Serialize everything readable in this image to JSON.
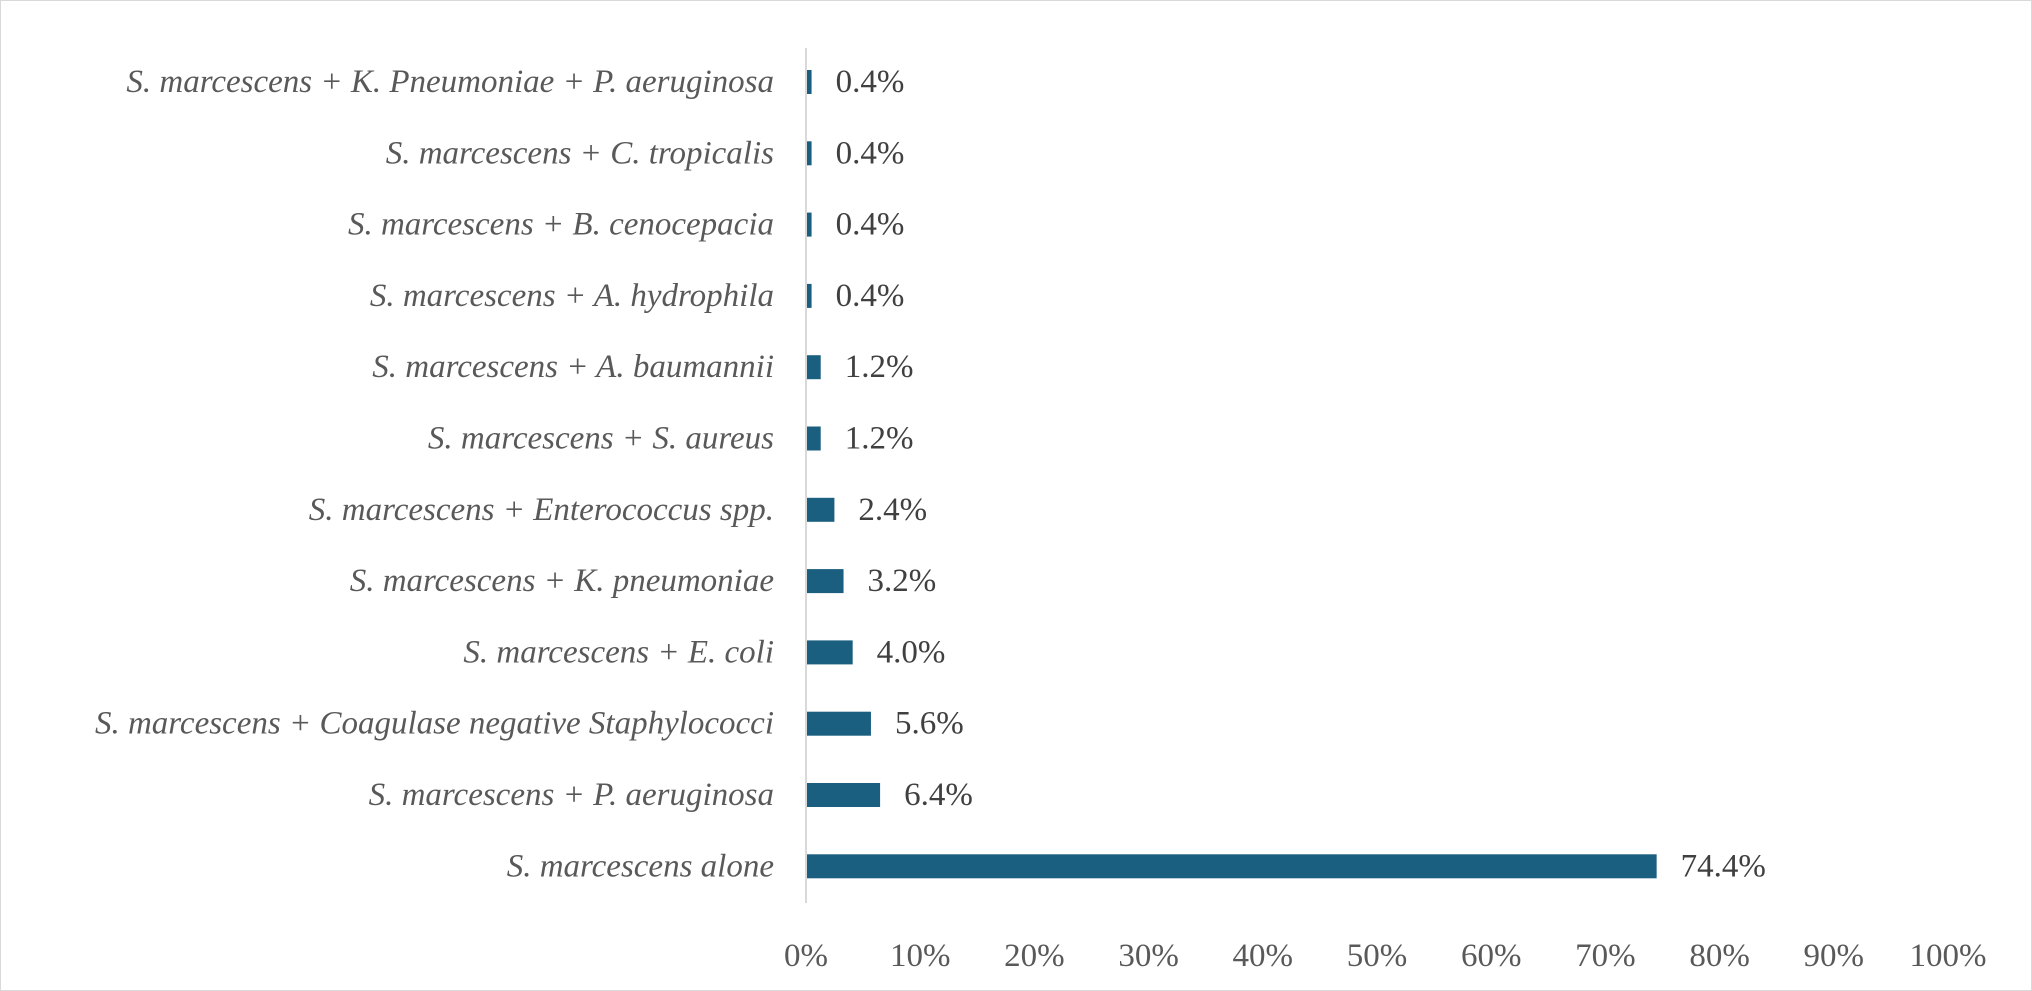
{
  "chart_data": {
    "type": "bar",
    "orientation": "horizontal",
    "title": "",
    "xlabel": "",
    "ylabel": "",
    "xlim": [
      0,
      100
    ],
    "grid": false,
    "legend": "none",
    "bar_color": "#1a5f7f",
    "categories": [
      "S. marcescens + K. Pneumoniae + P. aeruginosa",
      "S. marcescens + C. tropicalis",
      "S. marcescens + B. cenocepacia",
      "S. marcescens + A. hydrophila",
      "S. marcescens + A. baumannii",
      "S. marcescens + S. aureus",
      "S. marcescens + Enterococcus spp.",
      "S. marcescens + K. pneumoniae",
      "S. marcescens + E. coli",
      "S. marcescens + Coagulase negative Staphylococci",
      "S. marcescens + P. aeruginosa",
      "S. marcescens alone"
    ],
    "values": [
      0.4,
      0.4,
      0.4,
      0.4,
      1.2,
      1.2,
      2.4,
      3.2,
      4.0,
      5.6,
      6.4,
      74.4
    ],
    "data_labels": [
      "0.4%",
      "0.4%",
      "0.4%",
      "0.4%",
      "1.2%",
      "1.2%",
      "2.4%",
      "3.2%",
      "4.0%",
      "5.6%",
      "6.4%",
      "74.4%"
    ],
    "x_ticks": [
      "0%",
      "10%",
      "20%",
      "30%",
      "40%",
      "50%",
      "60%",
      "70%",
      "80%",
      "90%",
      "100%"
    ]
  }
}
